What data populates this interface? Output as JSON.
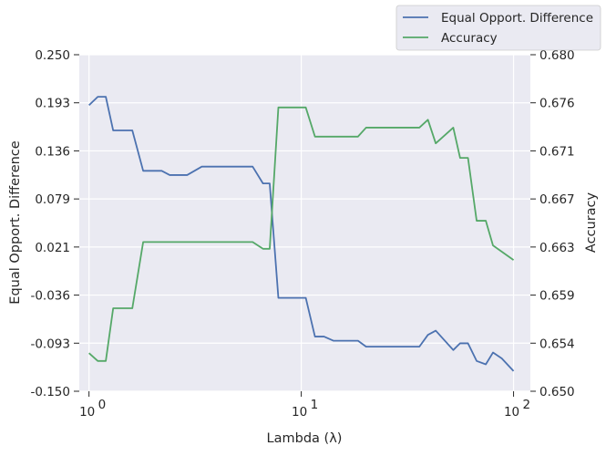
{
  "chart_data": {
    "type": "line",
    "title": "",
    "xlabel": "Lambda (λ)",
    "xscale": "log",
    "xlim": [
      0.9,
      120
    ],
    "x_ticks": [
      {
        "value": 1,
        "label": "10",
        "exp": "0"
      },
      {
        "value": 10,
        "label": "10",
        "exp": "1"
      },
      {
        "value": 100,
        "label": "10",
        "exp": "2"
      }
    ],
    "grid": true,
    "legend": {
      "placement": "top-right, above plot"
    },
    "left_axis": {
      "label": "Equal Opport. Difference",
      "ylim": [
        -0.15,
        0.25
      ],
      "ticks": [
        "-0.150",
        "-0.093",
        "-0.036",
        "0.021",
        "0.079",
        "0.136",
        "0.193",
        "0.250"
      ]
    },
    "right_axis": {
      "label": "Accuracy",
      "ylim": [
        0.65,
        0.68
      ],
      "ticks": [
        "0.650",
        "0.654",
        "0.659",
        "0.663",
        "0.667",
        "0.671",
        "0.676",
        "0.680"
      ]
    },
    "series": [
      {
        "name": "Equal Opport. Difference",
        "axis": "left",
        "color": "#4c72b0",
        "points": [
          [
            1.0,
            0.19
          ],
          [
            1.1,
            0.2
          ],
          [
            1.2,
            0.2
          ],
          [
            1.3,
            0.16
          ],
          [
            1.6,
            0.16
          ],
          [
            1.8,
            0.112
          ],
          [
            2.2,
            0.112
          ],
          [
            2.4,
            0.107
          ],
          [
            2.9,
            0.107
          ],
          [
            3.4,
            0.117
          ],
          [
            5.9,
            0.117
          ],
          [
            6.6,
            0.097
          ],
          [
            7.1,
            0.097
          ],
          [
            7.8,
            -0.039
          ],
          [
            10.5,
            -0.039
          ],
          [
            11.6,
            -0.085
          ],
          [
            12.8,
            -0.085
          ],
          [
            14.2,
            -0.09
          ],
          [
            18.5,
            -0.09
          ],
          [
            20.2,
            -0.097
          ],
          [
            36.0,
            -0.097
          ],
          [
            39.5,
            -0.083
          ],
          [
            43.0,
            -0.078
          ],
          [
            52.0,
            -0.101
          ],
          [
            56.0,
            -0.093
          ],
          [
            61.0,
            -0.093
          ],
          [
            67.0,
            -0.114
          ],
          [
            74.0,
            -0.118
          ],
          [
            80.0,
            -0.104
          ],
          [
            88.0,
            -0.111
          ],
          [
            100.0,
            -0.126
          ]
        ]
      },
      {
        "name": "Accuracy",
        "axis": "right",
        "color": "#55a868",
        "points": [
          [
            1.0,
            0.6534
          ],
          [
            1.1,
            0.6527
          ],
          [
            1.2,
            0.6527
          ],
          [
            1.3,
            0.6574
          ],
          [
            1.6,
            0.6574
          ],
          [
            1.8,
            0.6633
          ],
          [
            5.9,
            0.6633
          ],
          [
            6.6,
            0.6627
          ],
          [
            7.1,
            0.6627
          ],
          [
            7.8,
            0.6753
          ],
          [
            10.5,
            0.6753
          ],
          [
            11.6,
            0.6727
          ],
          [
            18.5,
            0.6727
          ],
          [
            20.2,
            0.6735
          ],
          [
            36.0,
            0.6735
          ],
          [
            39.5,
            0.6742
          ],
          [
            43.0,
            0.6721
          ],
          [
            52.0,
            0.6735
          ],
          [
            56.0,
            0.6708
          ],
          [
            61.0,
            0.6708
          ],
          [
            67.0,
            0.6652
          ],
          [
            74.0,
            0.6652
          ],
          [
            80.0,
            0.663
          ],
          [
            100.0,
            0.6617
          ]
        ]
      }
    ]
  }
}
